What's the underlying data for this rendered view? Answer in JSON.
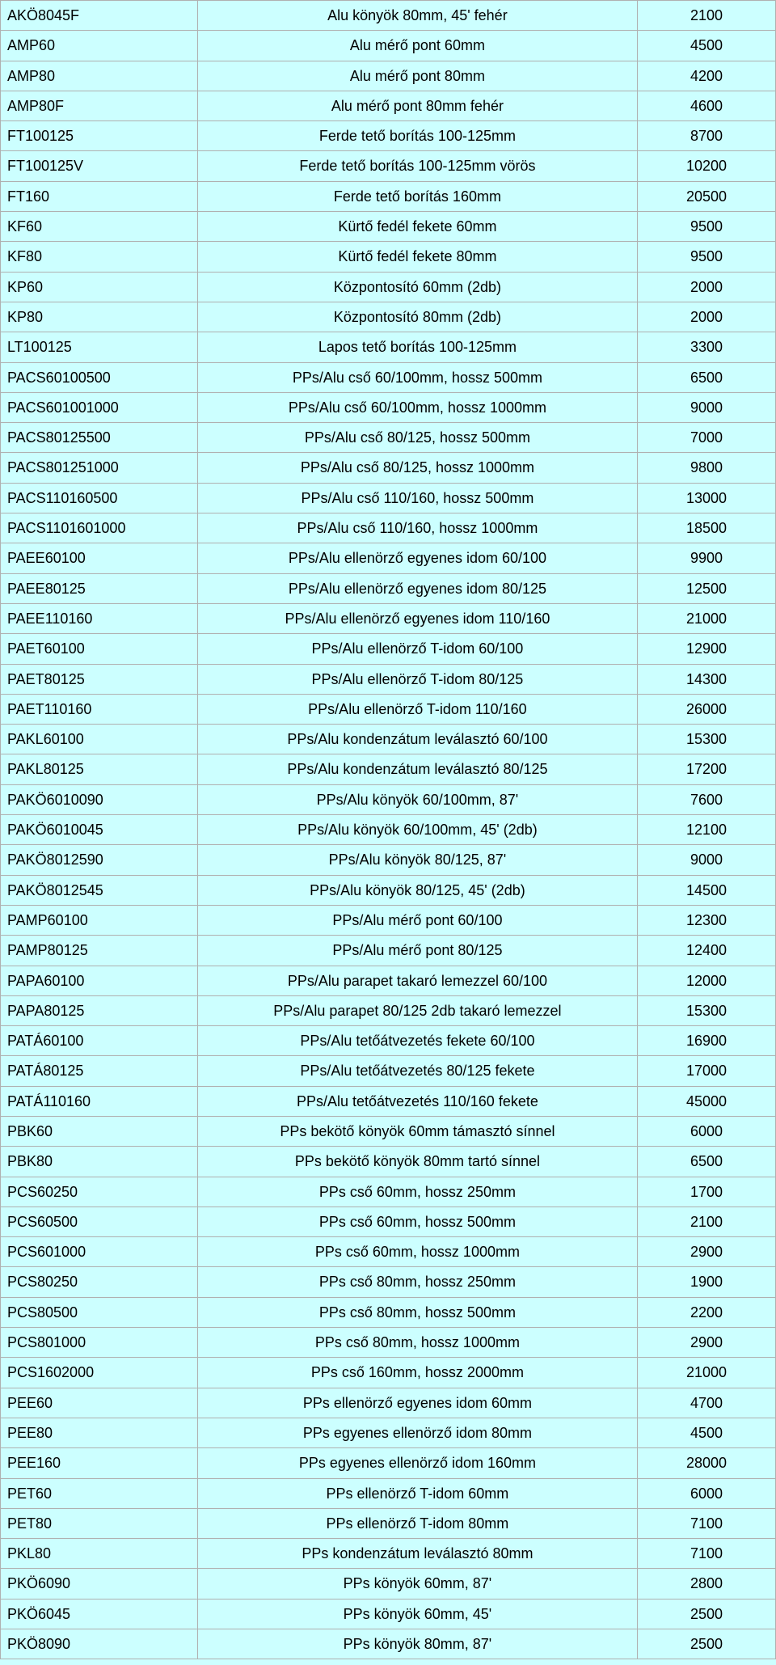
{
  "table": {
    "columns": [
      {
        "key": "code",
        "align": "left",
        "width": "25%"
      },
      {
        "key": "desc",
        "align": "center",
        "width": "58%"
      },
      {
        "key": "price",
        "align": "center",
        "width": "17%"
      }
    ],
    "background_color": "#ccffff",
    "border_color": "#b0b0b0",
    "font_family": "Verdana",
    "font_size_pt": 14,
    "text_color": "#000000",
    "rows": [
      [
        "AKÖ8045F",
        "Alu könyök 80mm, 45' fehér",
        "2100"
      ],
      [
        "AMP60",
        "Alu mérő pont 60mm",
        "4500"
      ],
      [
        "AMP80",
        "Alu mérő pont 80mm",
        "4200"
      ],
      [
        "AMP80F",
        "Alu mérő pont 80mm fehér",
        "4600"
      ],
      [
        "FT100125",
        "Ferde tető borítás 100-125mm",
        "8700"
      ],
      [
        "FT100125V",
        "Ferde tető borítás 100-125mm vörös",
        "10200"
      ],
      [
        "FT160",
        "Ferde tető borítás 160mm",
        "20500"
      ],
      [
        "KF60",
        "Kürtő fedél fekete 60mm",
        "9500"
      ],
      [
        "KF80",
        "Kürtő fedél fekete 80mm",
        "9500"
      ],
      [
        "KP60",
        "Központosító 60mm (2db)",
        "2000"
      ],
      [
        "KP80",
        "Központosító 80mm (2db)",
        "2000"
      ],
      [
        "LT100125",
        "Lapos tető borítás 100-125mm",
        "3300"
      ],
      [
        "PACS60100500",
        "PPs/Alu cső 60/100mm, hossz 500mm",
        "6500"
      ],
      [
        "PACS601001000",
        "PPs/Alu cső 60/100mm, hossz 1000mm",
        "9000"
      ],
      [
        "PACS80125500",
        "PPs/Alu cső 80/125, hossz 500mm",
        "7000"
      ],
      [
        "PACS801251000",
        "PPs/Alu cső 80/125, hossz 1000mm",
        "9800"
      ],
      [
        "PACS110160500",
        "PPs/Alu cső 110/160, hossz 500mm",
        "13000"
      ],
      [
        "PACS1101601000",
        "PPs/Alu cső 110/160, hossz 1000mm",
        "18500"
      ],
      [
        "PAEE60100",
        "PPs/Alu ellenörző egyenes idom 60/100",
        "9900"
      ],
      [
        "PAEE80125",
        "PPs/Alu ellenörző egyenes idom 80/125",
        "12500"
      ],
      [
        "PAEE110160",
        "PPs/Alu ellenörző egyenes idom 110/160",
        "21000"
      ],
      [
        "PAET60100",
        "PPs/Alu ellenörző T-idom 60/100",
        "12900"
      ],
      [
        "PAET80125",
        "PPs/Alu ellenörző T-idom 80/125",
        "14300"
      ],
      [
        "PAET110160",
        "PPs/Alu ellenörző T-idom 110/160",
        "26000"
      ],
      [
        "PAKL60100",
        "PPs/Alu kondenzátum leválasztó 60/100",
        "15300"
      ],
      [
        "PAKL80125",
        "PPs/Alu kondenzátum leválasztó 80/125",
        "17200"
      ],
      [
        "PAKÖ6010090",
        "PPs/Alu könyök 60/100mm, 87'",
        "7600"
      ],
      [
        "PAKÖ6010045",
        "PPs/Alu könyök 60/100mm, 45' (2db)",
        "12100"
      ],
      [
        "PAKÖ8012590",
        "PPs/Alu könyök 80/125, 87'",
        "9000"
      ],
      [
        "PAKÖ8012545",
        "PPs/Alu könyök 80/125, 45' (2db)",
        "14500"
      ],
      [
        "PAMP60100",
        "PPs/Alu mérő pont 60/100",
        "12300"
      ],
      [
        "PAMP80125",
        "PPs/Alu mérő pont 80/125",
        "12400"
      ],
      [
        "PAPA60100",
        "PPs/Alu parapet takaró lemezzel 60/100",
        "12000"
      ],
      [
        "PAPA80125",
        "PPs/Alu parapet 80/125 2db takaró lemezzel",
        "15300"
      ],
      [
        "PATÁ60100",
        "PPs/Alu tetőátvezetés fekete 60/100",
        "16900"
      ],
      [
        "PATÁ80125",
        "PPs/Alu tetőátvezetés 80/125 fekete",
        "17000"
      ],
      [
        "PATÁ110160",
        "PPs/Alu tetőátvezetés 110/160 fekete",
        "45000"
      ],
      [
        "PBK60",
        "PPs bekötő könyök 60mm támasztó sínnel",
        "6000"
      ],
      [
        "PBK80",
        "PPs bekötő könyök 80mm tartó sínnel",
        "6500"
      ],
      [
        "PCS60250",
        "PPs cső 60mm, hossz 250mm",
        "1700"
      ],
      [
        "PCS60500",
        "PPs cső 60mm, hossz 500mm",
        "2100"
      ],
      [
        "PCS601000",
        "PPs cső 60mm, hossz 1000mm",
        "2900"
      ],
      [
        "PCS80250",
        "PPs cső 80mm, hossz 250mm",
        "1900"
      ],
      [
        "PCS80500",
        "PPs cső 80mm, hossz 500mm",
        "2200"
      ],
      [
        "PCS801000",
        "PPs cső 80mm, hossz 1000mm",
        "2900"
      ],
      [
        "PCS1602000",
        "PPs cső 160mm, hossz 2000mm",
        "21000"
      ],
      [
        "PEE60",
        "PPs ellenörző egyenes idom 60mm",
        "4700"
      ],
      [
        "PEE80",
        "PPs egyenes ellenörző idom 80mm",
        "4500"
      ],
      [
        "PEE160",
        "PPs egyenes ellenörző idom 160mm",
        "28000"
      ],
      [
        "PET60",
        "PPs ellenörző T-idom 60mm",
        "6000"
      ],
      [
        "PET80",
        "PPs ellenörző T-idom 80mm",
        "7100"
      ],
      [
        "PKL80",
        "PPs kondenzátum leválasztó 80mm",
        "7100"
      ],
      [
        "PKÖ6090",
        "PPs könyök 60mm, 87'",
        "2800"
      ],
      [
        "PKÖ6045",
        "PPs könyök 60mm, 45'",
        "2500"
      ],
      [
        "PKÖ8090",
        "PPs könyök 80mm, 87'",
        "2500"
      ]
    ]
  }
}
